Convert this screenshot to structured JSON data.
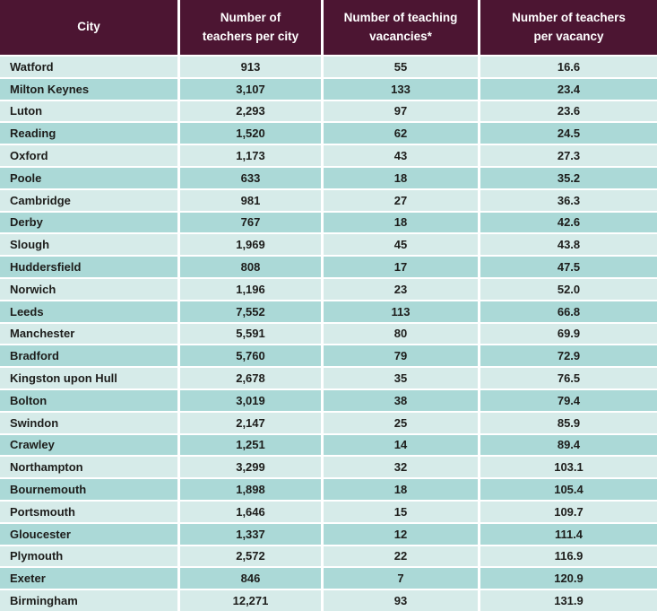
{
  "colors": {
    "header_bg": "#4c1532",
    "header_text": "#ffffff",
    "row_light": "#d6ebe9",
    "row_dark": "#abd9d7",
    "cell_text": "#1d1d1b"
  },
  "chart_data": {
    "type": "table",
    "title": "",
    "columns": [
      "City",
      "Number of\nteachers per city",
      "Number of teaching\nvacancies*",
      "Number of teachers\nper vacancy"
    ],
    "rows": [
      [
        "Watford",
        "913",
        "55",
        "16.6"
      ],
      [
        "Milton Keynes",
        "3,107",
        "133",
        "23.4"
      ],
      [
        "Luton",
        "2,293",
        "97",
        "23.6"
      ],
      [
        "Reading",
        "1,520",
        "62",
        "24.5"
      ],
      [
        "Oxford",
        "1,173",
        "43",
        "27.3"
      ],
      [
        "Poole",
        "633",
        "18",
        "35.2"
      ],
      [
        "Cambridge",
        "981",
        "27",
        "36.3"
      ],
      [
        "Derby",
        "767",
        "18",
        "42.6"
      ],
      [
        "Slough",
        "1,969",
        "45",
        "43.8"
      ],
      [
        "Huddersfield",
        "808",
        "17",
        "47.5"
      ],
      [
        "Norwich",
        "1,196",
        "23",
        "52.0"
      ],
      [
        "Leeds",
        "7,552",
        "113",
        "66.8"
      ],
      [
        "Manchester",
        "5,591",
        "80",
        "69.9"
      ],
      [
        "Bradford",
        "5,760",
        "79",
        "72.9"
      ],
      [
        "Kingston upon Hull",
        "2,678",
        "35",
        "76.5"
      ],
      [
        "Bolton",
        "3,019",
        "38",
        "79.4"
      ],
      [
        "Swindon",
        "2,147",
        "25",
        "85.9"
      ],
      [
        "Crawley",
        "1,251",
        "14",
        "89.4"
      ],
      [
        "Northampton",
        "3,299",
        "32",
        "103.1"
      ],
      [
        "Bournemouth",
        "1,898",
        "18",
        "105.4"
      ],
      [
        "Portsmouth",
        "1,646",
        "15",
        "109.7"
      ],
      [
        "Gloucester",
        "1,337",
        "12",
        "111.4"
      ],
      [
        "Plymouth",
        "2,572",
        "22",
        "116.9"
      ],
      [
        "Exeter",
        "846",
        "7",
        "120.9"
      ],
      [
        "Birmingham",
        "12,271",
        "93",
        "131.9"
      ]
    ]
  }
}
